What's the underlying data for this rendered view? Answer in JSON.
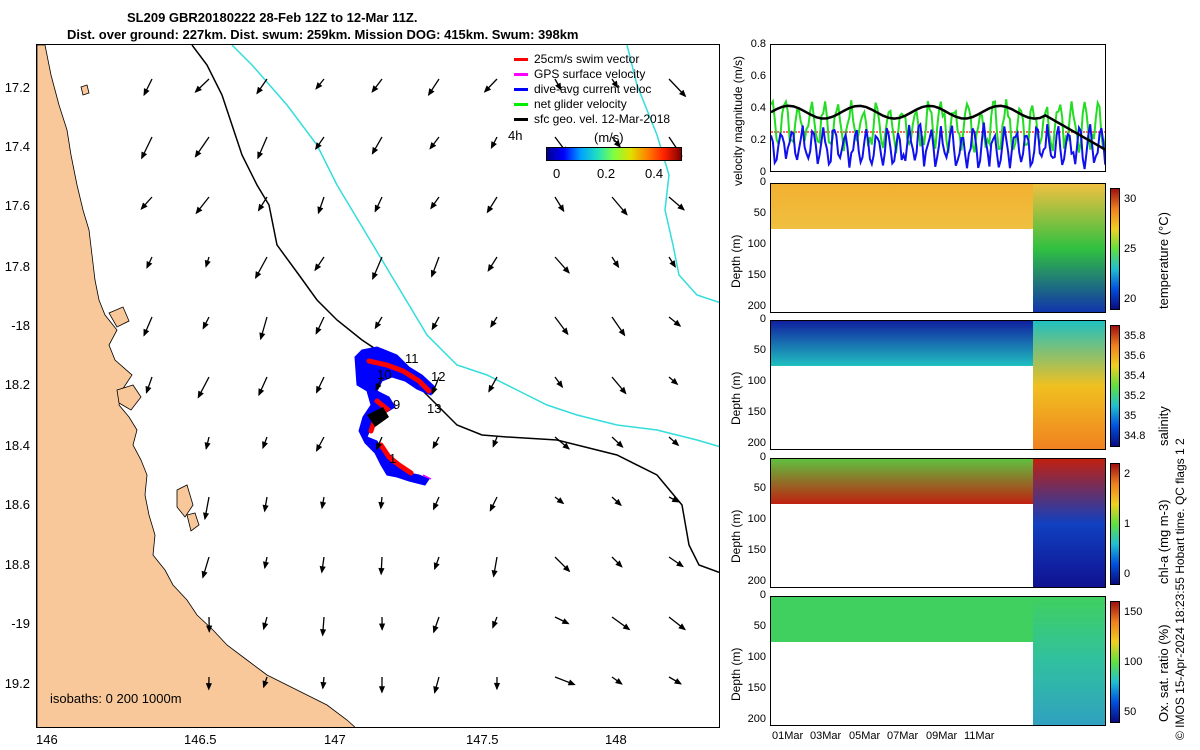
{
  "title": {
    "line1": "SL209 GBR20180222 28-Feb 12Z to 12-Mar 11Z.",
    "line2": "Dist. over ground: 227km. Dist. swum: 259km. Mission DOG: 415km. Swum: 398km"
  },
  "map": {
    "lat_ticks": [
      "17.2",
      "17.4",
      "17.6",
      "17.8",
      "-18",
      "18.2",
      "18.4",
      "18.6",
      "18.8",
      "-19",
      "19.2"
    ],
    "lon_ticks": [
      "146",
      "146.5",
      "147",
      "147.5",
      "148"
    ],
    "isobaths_note": "isobaths: 0   200  1000m",
    "legend": [
      {
        "label": "25cm/s swim vector",
        "color": "#ff0000"
      },
      {
        "label": "GPS surface velocity",
        "color": "#ff00ff"
      },
      {
        "label": "dive-avg current veloc",
        "color": "#0000ff"
      },
      {
        "label": "net glider velocity",
        "color": "#00ee00"
      },
      {
        "label": "sfc geo. vel. 12-Mar-2018",
        "color": "#000000"
      }
    ],
    "time_label": "4h",
    "speed_colorbar": {
      "unit": "(m/s)",
      "ticks": [
        "0",
        "0.2",
        "0.4"
      ]
    },
    "day_labels": [
      "1",
      "9",
      "10",
      "11",
      "12",
      "13"
    ],
    "colors": {
      "land": "#f9c89a",
      "isobath200": "#000000",
      "isobath1000": "#33dddd",
      "track": "#0000ff",
      "swim": "#ff0000"
    }
  },
  "timeseries": {
    "ylabel": "velocity magnitude (m/s)",
    "yticks": [
      "0.8",
      "0.6",
      "0.4",
      "0.2",
      "0"
    ]
  },
  "sections": [
    {
      "depth_label": "Depth (m)",
      "depth_ticks": [
        "0",
        "50",
        "100",
        "150",
        "200"
      ],
      "cbar_label": "temperature (°C)",
      "cbar_ticks": [
        "30",
        "25",
        "20"
      ]
    },
    {
      "depth_label": "Depth (m)",
      "depth_ticks": [
        "0",
        "50",
        "100",
        "150",
        "200"
      ],
      "cbar_label": "salinity",
      "cbar_ticks": [
        "35.8",
        "35.6",
        "35.4",
        "35.2",
        "35",
        "34.8"
      ]
    },
    {
      "depth_label": "Depth (m)",
      "depth_ticks": [
        "0",
        "50",
        "100",
        "150",
        "200"
      ],
      "cbar_label": "chl-a (mg m-3)",
      "cbar_ticks": [
        "2",
        "1",
        "0"
      ]
    },
    {
      "depth_label": "Depth (m)",
      "depth_ticks": [
        "0",
        "50",
        "100",
        "150",
        "200"
      ],
      "cbar_label": "Ox. sat. ratio (%)",
      "cbar_ticks": [
        "150",
        "100",
        "50"
      ]
    }
  ],
  "date_ticks": [
    "01Mar",
    "03Mar",
    "05Mar",
    "07Mar",
    "09Mar",
    "11Mar"
  ],
  "credit": "© IMOS 15-Apr-2024 18:23:55 Hobart time. QC flags 1  2"
}
